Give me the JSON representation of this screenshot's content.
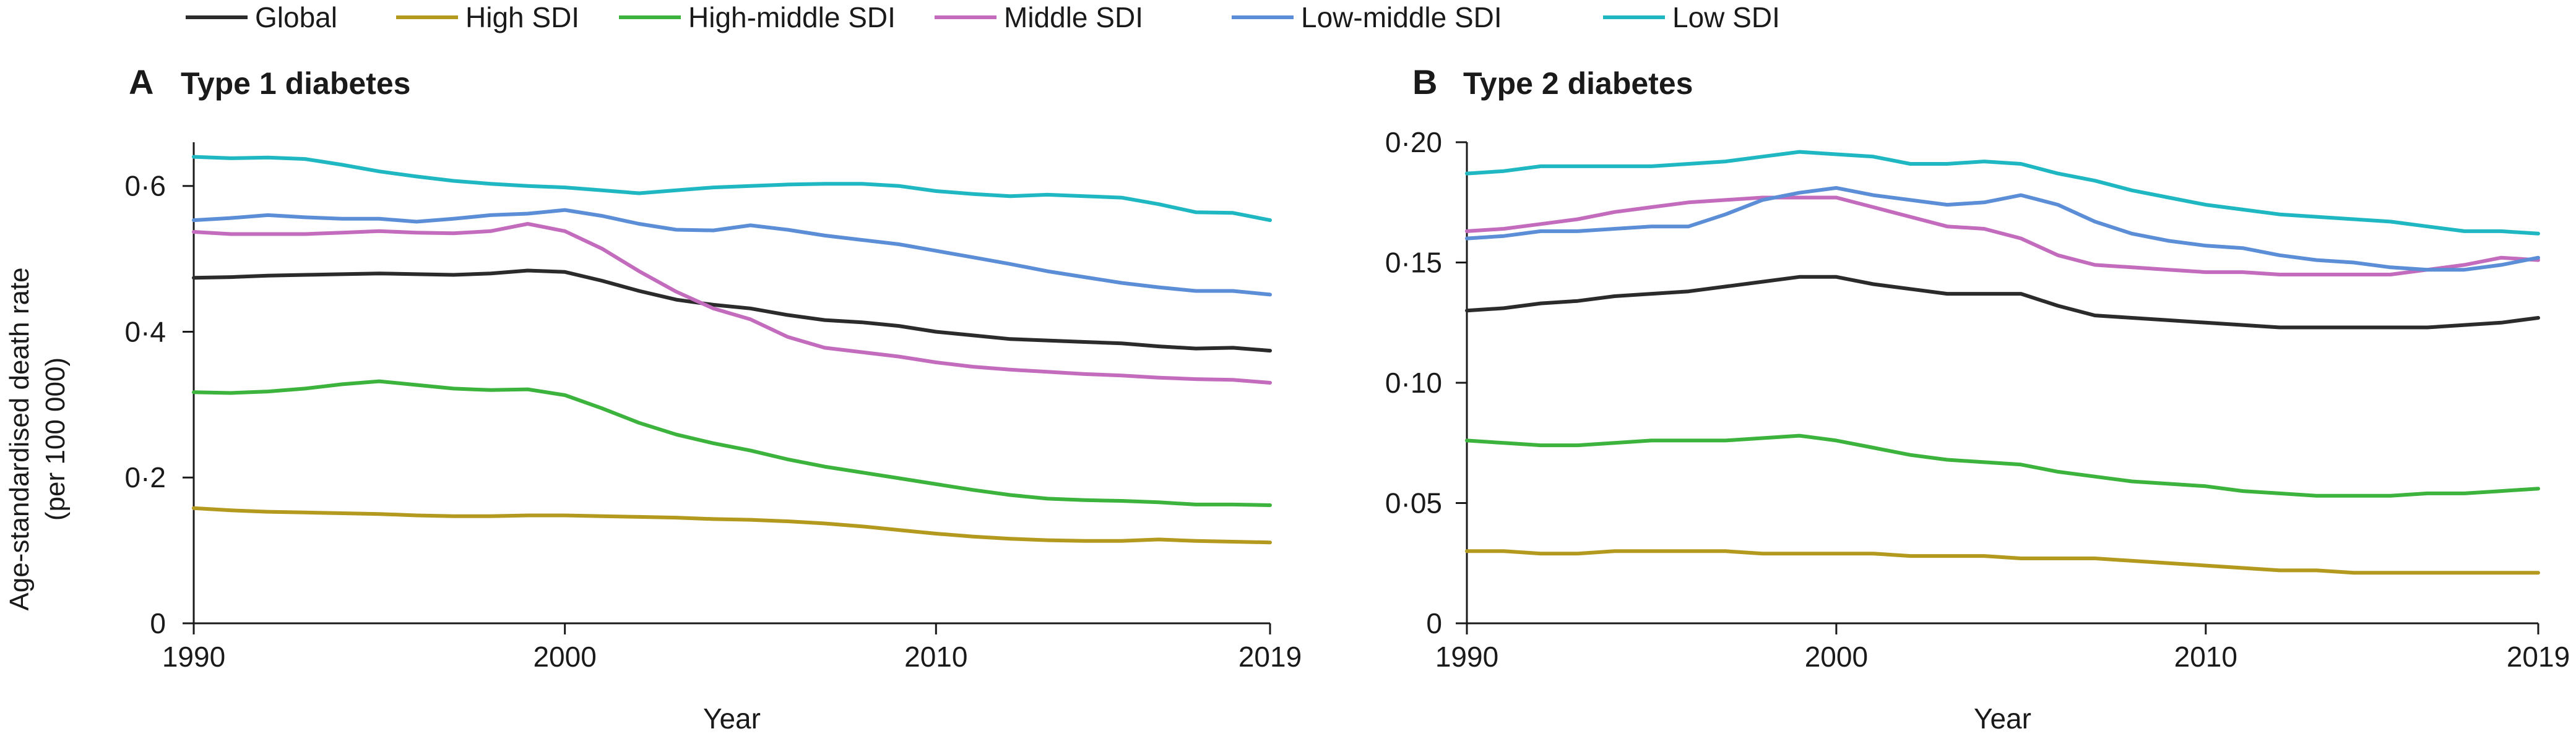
{
  "legend": [
    {
      "label": "Global",
      "color": "#2b2b2b"
    },
    {
      "label": "High SDI",
      "color": "#b39a1e"
    },
    {
      "label": "High-middle SDI",
      "color": "#3cb33c"
    },
    {
      "label": "Middle SDI",
      "color": "#c36bbd"
    },
    {
      "label": "Low-middle SDI",
      "color": "#5b8ed6"
    },
    {
      "label": "Low SDI",
      "color": "#1fb8c2"
    }
  ],
  "ylabel_line1": "Age-standardised death rate",
  "ylabel_line2": "(per 100 000)",
  "chart_data": [
    {
      "type": "line",
      "panel_letter": "A",
      "title": "Type 1 diabetes",
      "xlabel": "Year",
      "xlim": [
        1990,
        2019
      ],
      "ylim": [
        0,
        0.66
      ],
      "xticks": [
        1990,
        2000,
        2010,
        2019
      ],
      "xtick_labels": [
        "1990",
        "2000",
        "2010",
        "2019"
      ],
      "yticks": [
        0,
        0.2,
        0.4,
        0.6
      ],
      "ytick_labels": [
        "0",
        "0·2",
        "0·4",
        "0·6"
      ],
      "grid": false,
      "x": [
        1990,
        1991,
        1992,
        1993,
        1994,
        1995,
        1996,
        1997,
        1998,
        1999,
        2000,
        2001,
        2002,
        2003,
        2004,
        2005,
        2006,
        2007,
        2008,
        2009,
        2010,
        2011,
        2012,
        2013,
        2014,
        2015,
        2016,
        2017,
        2018,
        2019
      ],
      "series": [
        {
          "name": "Global",
          "values": [
            0.474,
            0.475,
            0.477,
            0.478,
            0.479,
            0.48,
            0.479,
            0.478,
            0.48,
            0.484,
            0.482,
            0.47,
            0.456,
            0.444,
            0.437,
            0.432,
            0.423,
            0.416,
            0.413,
            0.408,
            0.4,
            0.395,
            0.39,
            0.388,
            0.386,
            0.384,
            0.38,
            0.377,
            0.378,
            0.374
          ]
        },
        {
          "name": "High SDI",
          "values": [
            0.158,
            0.155,
            0.153,
            0.152,
            0.151,
            0.15,
            0.148,
            0.147,
            0.147,
            0.148,
            0.148,
            0.147,
            0.146,
            0.145,
            0.143,
            0.142,
            0.14,
            0.137,
            0.133,
            0.128,
            0.123,
            0.119,
            0.116,
            0.114,
            0.113,
            0.113,
            0.115,
            0.113,
            0.112,
            0.111
          ]
        },
        {
          "name": "High-middle SDI",
          "values": [
            0.317,
            0.316,
            0.318,
            0.322,
            0.328,
            0.332,
            0.327,
            0.322,
            0.32,
            0.321,
            0.313,
            0.295,
            0.275,
            0.259,
            0.247,
            0.237,
            0.225,
            0.215,
            0.207,
            0.199,
            0.191,
            0.183,
            0.176,
            0.171,
            0.169,
            0.168,
            0.166,
            0.163,
            0.163,
            0.162
          ]
        },
        {
          "name": "Middle SDI",
          "values": [
            0.537,
            0.534,
            0.534,
            0.534,
            0.536,
            0.538,
            0.536,
            0.535,
            0.538,
            0.548,
            0.538,
            0.514,
            0.483,
            0.455,
            0.432,
            0.417,
            0.393,
            0.378,
            0.372,
            0.366,
            0.358,
            0.352,
            0.348,
            0.345,
            0.342,
            0.34,
            0.337,
            0.335,
            0.334,
            0.33
          ]
        },
        {
          "name": "Low-middle SDI",
          "values": [
            0.553,
            0.556,
            0.56,
            0.557,
            0.555,
            0.555,
            0.551,
            0.555,
            0.56,
            0.562,
            0.567,
            0.559,
            0.548,
            0.54,
            0.539,
            0.546,
            0.54,
            0.532,
            0.526,
            0.52,
            0.511,
            0.502,
            0.493,
            0.483,
            0.475,
            0.467,
            0.461,
            0.456,
            0.456,
            0.451
          ]
        },
        {
          "name": "Low SDI",
          "values": [
            0.64,
            0.638,
            0.639,
            0.637,
            0.629,
            0.62,
            0.613,
            0.607,
            0.603,
            0.6,
            0.598,
            0.594,
            0.59,
            0.594,
            0.598,
            0.6,
            0.602,
            0.603,
            0.603,
            0.6,
            0.593,
            0.589,
            0.586,
            0.588,
            0.586,
            0.584,
            0.575,
            0.564,
            0.563,
            0.553
          ]
        }
      ]
    },
    {
      "type": "line",
      "panel_letter": "B",
      "title": "Type 2 diabetes",
      "xlabel": "Year",
      "xlim": [
        1990,
        2019
      ],
      "ylim": [
        0,
        0.2
      ],
      "xticks": [
        1990,
        2000,
        2010,
        2019
      ],
      "xtick_labels": [
        "1990",
        "2000",
        "2010",
        "2019"
      ],
      "yticks": [
        0,
        0.05,
        0.1,
        0.15,
        0.2
      ],
      "ytick_labels": [
        "0",
        "0·05",
        "0·10",
        "0·15",
        "0·20"
      ],
      "grid": false,
      "x": [
        1990,
        1991,
        1992,
        1993,
        1994,
        1995,
        1996,
        1997,
        1998,
        1999,
        2000,
        2001,
        2002,
        2003,
        2004,
        2005,
        2006,
        2007,
        2008,
        2009,
        2010,
        2011,
        2012,
        2013,
        2014,
        2015,
        2016,
        2017,
        2018,
        2019
      ],
      "series": [
        {
          "name": "Global",
          "values": [
            0.13,
            0.131,
            0.133,
            0.134,
            0.136,
            0.137,
            0.138,
            0.14,
            0.142,
            0.144,
            0.144,
            0.141,
            0.139,
            0.137,
            0.137,
            0.137,
            0.132,
            0.128,
            0.127,
            0.126,
            0.125,
            0.124,
            0.123,
            0.123,
            0.123,
            0.123,
            0.123,
            0.124,
            0.125,
            0.127
          ]
        },
        {
          "name": "High SDI",
          "values": [
            0.03,
            0.03,
            0.029,
            0.029,
            0.03,
            0.03,
            0.03,
            0.03,
            0.029,
            0.029,
            0.029,
            0.029,
            0.028,
            0.028,
            0.028,
            0.027,
            0.027,
            0.027,
            0.026,
            0.025,
            0.024,
            0.023,
            0.022,
            0.022,
            0.021,
            0.021,
            0.021,
            0.021,
            0.021,
            0.021
          ]
        },
        {
          "name": "High-middle SDI",
          "values": [
            0.076,
            0.075,
            0.074,
            0.074,
            0.075,
            0.076,
            0.076,
            0.076,
            0.077,
            0.078,
            0.076,
            0.073,
            0.07,
            0.068,
            0.067,
            0.066,
            0.063,
            0.061,
            0.059,
            0.058,
            0.057,
            0.055,
            0.054,
            0.053,
            0.053,
            0.053,
            0.054,
            0.054,
            0.055,
            0.056
          ]
        },
        {
          "name": "Middle SDI",
          "values": [
            0.163,
            0.164,
            0.166,
            0.168,
            0.171,
            0.173,
            0.175,
            0.176,
            0.177,
            0.177,
            0.177,
            0.173,
            0.169,
            0.165,
            0.164,
            0.16,
            0.153,
            0.149,
            0.148,
            0.147,
            0.146,
            0.146,
            0.145,
            0.145,
            0.145,
            0.145,
            0.147,
            0.149,
            0.152,
            0.151
          ]
        },
        {
          "name": "Low-middle SDI",
          "values": [
            0.16,
            0.161,
            0.163,
            0.163,
            0.164,
            0.165,
            0.165,
            0.17,
            0.176,
            0.179,
            0.181,
            0.178,
            0.176,
            0.174,
            0.175,
            0.178,
            0.174,
            0.167,
            0.162,
            0.159,
            0.157,
            0.156,
            0.153,
            0.151,
            0.15,
            0.148,
            0.147,
            0.147,
            0.149,
            0.152
          ]
        },
        {
          "name": "Low SDI",
          "values": [
            0.187,
            0.188,
            0.19,
            0.19,
            0.19,
            0.19,
            0.191,
            0.192,
            0.194,
            0.196,
            0.195,
            0.194,
            0.191,
            0.191,
            0.192,
            0.191,
            0.187,
            0.184,
            0.18,
            0.177,
            0.174,
            0.172,
            0.17,
            0.169,
            0.168,
            0.167,
            0.165,
            0.163,
            0.163,
            0.162
          ]
        }
      ]
    }
  ]
}
